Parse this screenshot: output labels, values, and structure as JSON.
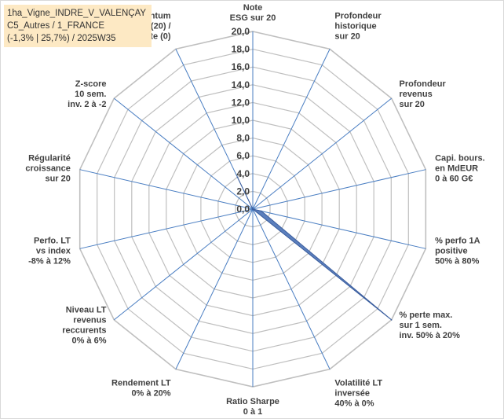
{
  "title_lines": [
    "1ha_Vigne_INDRE_V_VALENÇAY",
    "C5_Autres / 1_FRANCE",
    "(-1,3% | 25,7%) / 2025W35"
  ],
  "chart_data": {
    "type": "radar",
    "rmax": 20,
    "tick_step": 2,
    "tick_labels": [
      "0,0",
      "2,0",
      "4,0",
      "6,0",
      "8,0",
      "10,0",
      "12,0",
      "14,0",
      "16,0",
      "18,0",
      "20,0"
    ],
    "grid": true,
    "colors": {
      "fill": "#5b7fbd",
      "stroke": "#3d5f9e",
      "grid": "#bfbfbf",
      "spoke": "#4a7ec2",
      "text": "#404040"
    },
    "axes": [
      {
        "label": [
          "Note",
          "ESG sur 20"
        ],
        "value": 0
      },
      {
        "label": [
          "Profondeur",
          "historique",
          "sur 20"
        ],
        "value": 0
      },
      {
        "label": [
          "Profondeur",
          "revenus",
          "sur 20"
        ],
        "value": 0
      },
      {
        "label": [
          "Capi. bours.",
          "en MdEUR",
          "0 à 60 G€"
        ],
        "value": 0
      },
      {
        "label": [
          "% perfo 1A",
          "positive",
          "50% à 80%"
        ],
        "value": 1.0
      },
      {
        "label": [
          "% perte max.",
          "sur 1 sem.",
          "inv. 50% à 20%"
        ],
        "value": 20
      },
      {
        "label": [
          "Volatilité LT",
          "inversée",
          "40% à 0%"
        ],
        "value": 0
      },
      {
        "label": [
          "Ratio Sharpe",
          "0 à 1"
        ],
        "value": 0
      },
      {
        "label": [
          "Rendement LT",
          "0% à 20%"
        ],
        "value": 0
      },
      {
        "label": [
          "Niveau LT",
          "revenus",
          "reccurents",
          "0% à 6%"
        ],
        "value": 0
      },
      {
        "label": [
          "Perfo. LT",
          "vs index",
          "-8% à 12%"
        ],
        "value": 0
      },
      {
        "label": [
          "Régularité",
          "croissance",
          "sur 20"
        ],
        "value": 0
      },
      {
        "label": [
          "Z-score",
          "10 sem.",
          "inv. 2 à -2"
        ],
        "value": 0
      },
      {
        "label": [
          "Momentum",
          "Achat (20) /",
          "Vente (0)"
        ],
        "value": 4
      }
    ]
  }
}
